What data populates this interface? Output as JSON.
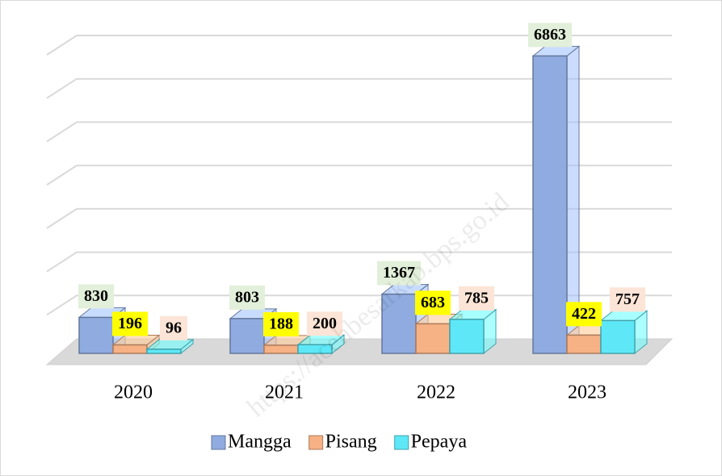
{
  "chart_data": {
    "type": "bar3d",
    "categories": [
      "2020",
      "2021",
      "2022",
      "2023"
    ],
    "series": [
      {
        "name": "Mangga",
        "color": "#8fabe0",
        "label_bg": "#e2efda",
        "values": [
          830,
          803,
          1367,
          6863
        ]
      },
      {
        "name": "Pisang",
        "color": "#f6b184",
        "label_bg": "#ffff00",
        "values": [
          196,
          188,
          683,
          422
        ]
      },
      {
        "name": "Pepaya",
        "color": "#5ee8f7",
        "label_bg": "#fce4d6",
        "values": [
          96,
          200,
          785,
          757
        ]
      }
    ],
    "ylim": [
      0,
      7000
    ],
    "yticks": [
      0,
      1000,
      2000,
      3000,
      4000,
      5000,
      6000,
      7000
    ],
    "grid": true,
    "watermark": "https://acehbesarkab.bps.go.id"
  }
}
